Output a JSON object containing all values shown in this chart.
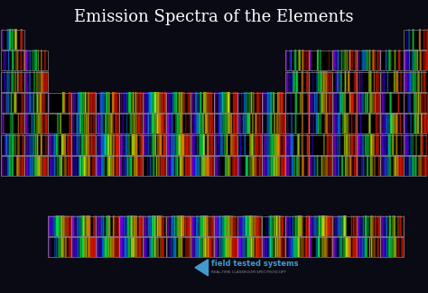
{
  "title": "Emission Spectra of the Elements",
  "title_fontsize": 13,
  "title_color": "white",
  "background_color": "#0a0a14",
  "cell_edge_color": "#888888",
  "fig_width": 4.74,
  "fig_height": 3.25,
  "dpi": 100,
  "subtitle": "field tested systems",
  "subtitle2": "REAL-TIME CLASSROOM SPECTROSCOPY",
  "logo_color": "#4499cc",
  "logo_text_color": "#4499cc",
  "subtitle2_color": "#888888"
}
